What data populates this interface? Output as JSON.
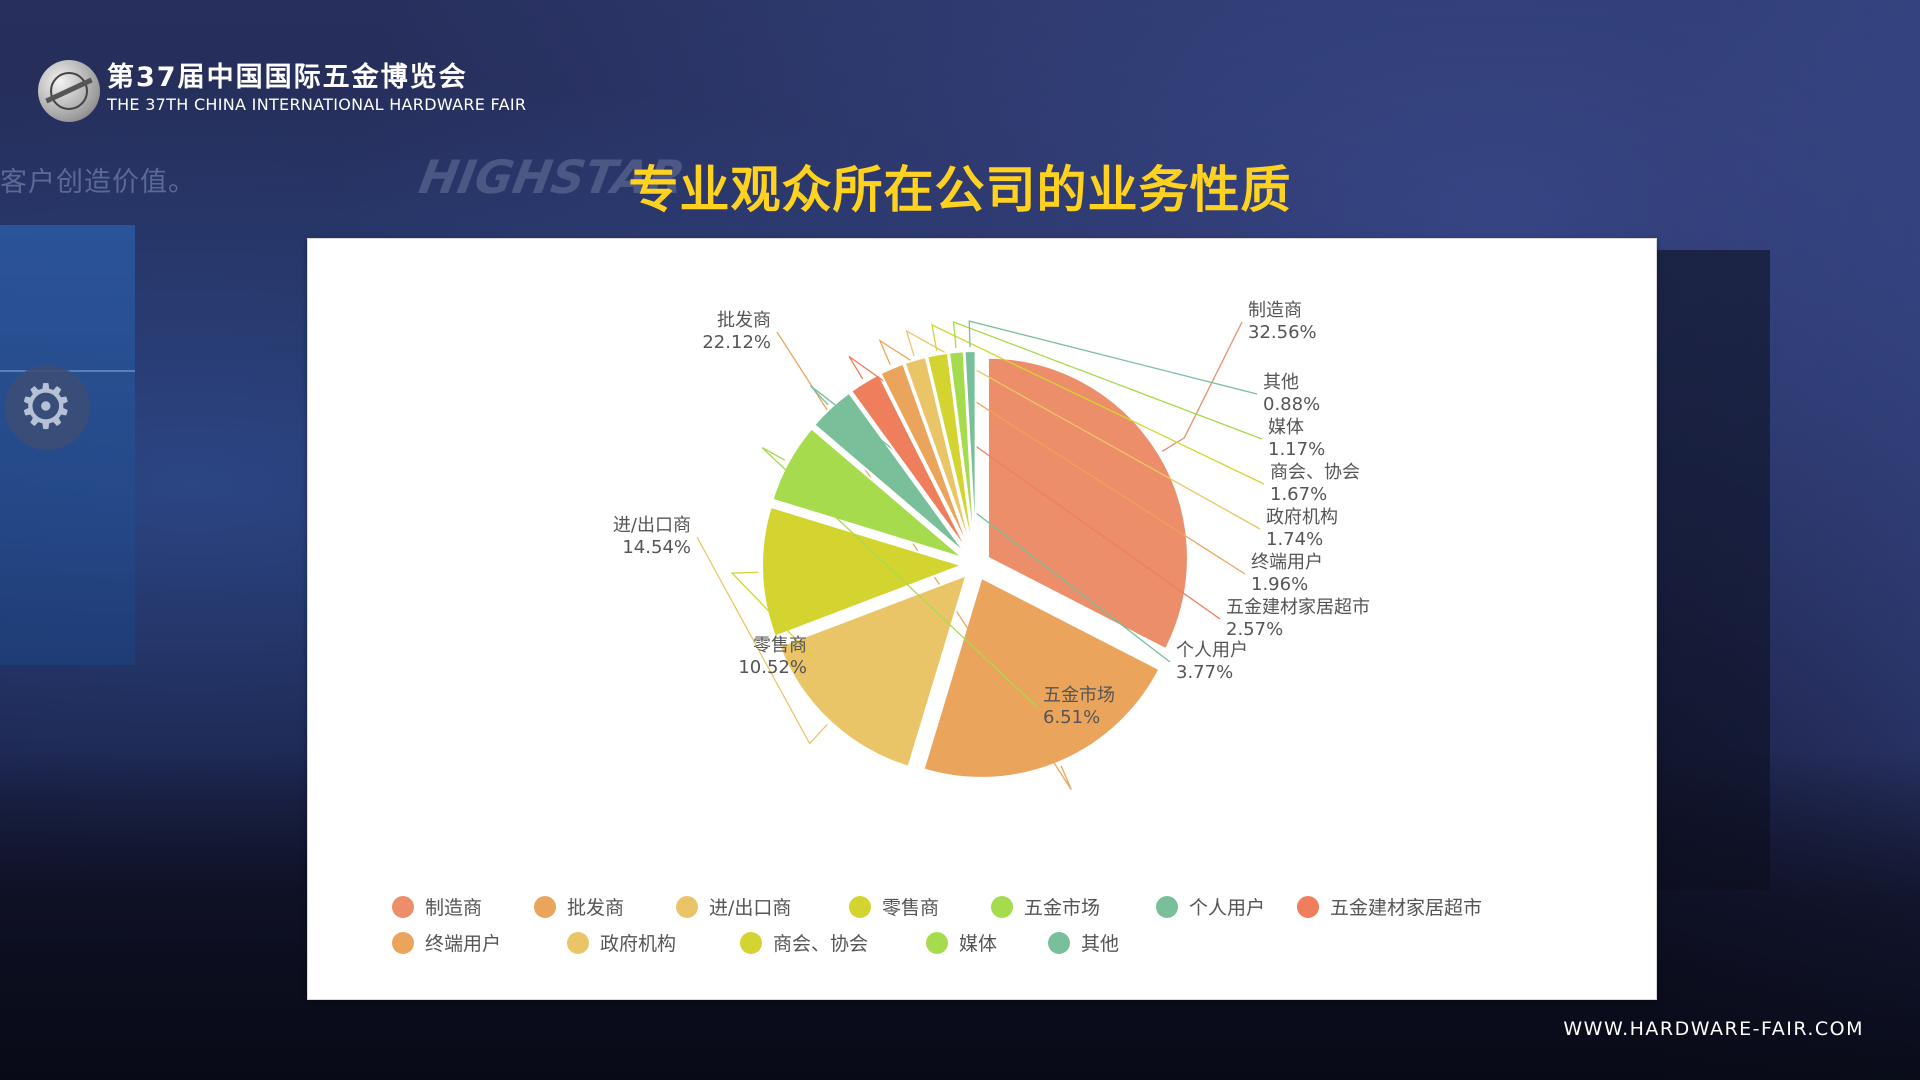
{
  "header": {
    "fair_name_cn": "第37届中国国际五金博览会",
    "fair_name_en": "THE 37TH CHINA INTERNATIONAL HARDWARE FAIR"
  },
  "background": {
    "slogan_fragment": "客户创造价值。",
    "brand_fragment": "HIGHSTAR"
  },
  "title": "专业观众所在公司的业务性质",
  "footer": {
    "website": "WWW.HARDWARE-FAIR.COM"
  },
  "chart_data": {
    "type": "pie",
    "title": "",
    "unit": "%",
    "legend_position": "bottom",
    "slices": [
      {
        "label": "制造商",
        "value": 32.56,
        "value_label": "32.56%",
        "color": "#ec8e6a"
      },
      {
        "label": "批发商",
        "value": 22.12,
        "value_label": "22.12%",
        "color": "#eba45c"
      },
      {
        "label": "进/出口商",
        "value": 14.54,
        "value_label": "14.54%",
        "color": "#eac567"
      },
      {
        "label": "零售商",
        "value": 10.52,
        "value_label": "10.52%",
        "color": "#d4d430"
      },
      {
        "label": "五金市场",
        "value": 6.51,
        "value_label": "6.51%",
        "color": "#a7db4e"
      },
      {
        "label": "个人用户",
        "value": 3.77,
        "value_label": "3.77%",
        "color": "#78bf9a"
      },
      {
        "label": "五金建材家居超市",
        "value": 2.57,
        "value_label": "2.57%",
        "color": "#ef7e5c"
      },
      {
        "label": "终端用户",
        "value": 1.96,
        "value_label": "1.96%",
        "color": "#eba45c"
      },
      {
        "label": "政府机构",
        "value": 1.74,
        "value_label": "1.74%",
        "color": "#eac567"
      },
      {
        "label": "商会、协会",
        "value": 1.67,
        "value_label": "1.67%",
        "color": "#d4d430"
      },
      {
        "label": "媒体",
        "value": 1.17,
        "value_label": "1.17%",
        "color": "#a7db4e"
      },
      {
        "label": "其他",
        "value": 0.88,
        "value_label": "0.88%",
        "color": "#78bf9a"
      }
    ]
  }
}
